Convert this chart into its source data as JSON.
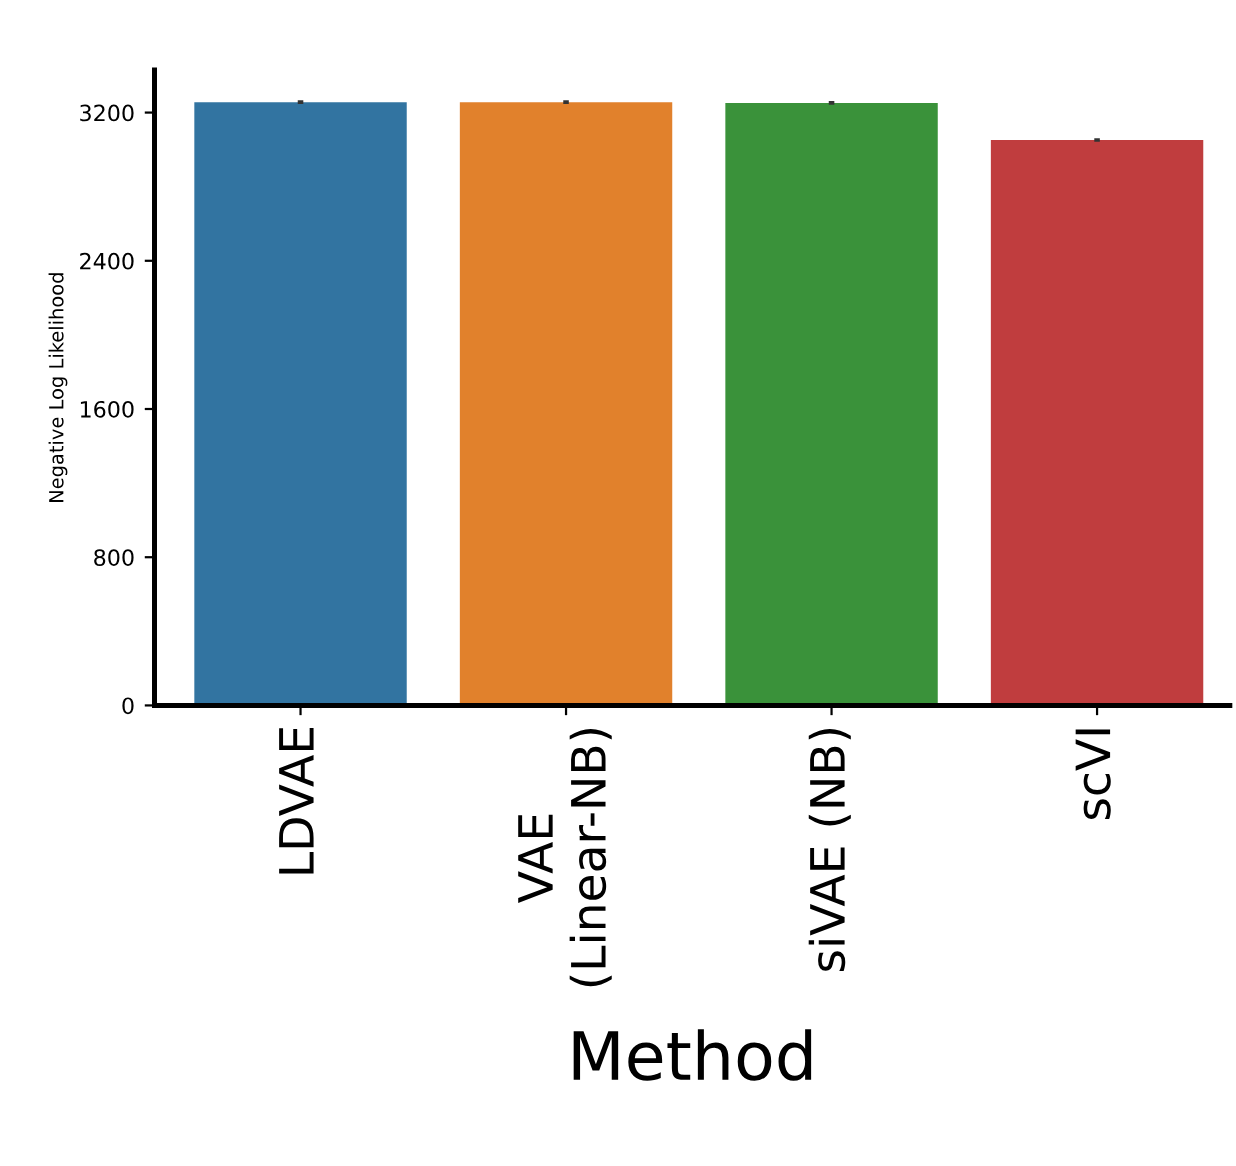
{
  "chart_data": {
    "type": "bar",
    "xlabel": "Method",
    "ylabel": "Negative Log Likelihood",
    "categories": [
      "LDVAE",
      "VAE\n(Linear-NB)",
      "siVAE (NB)",
      "scVI"
    ],
    "values": [
      3256,
      3256,
      3252,
      3052
    ],
    "errors": [
      10,
      10,
      10,
      10
    ],
    "colors": [
      "#3274a1",
      "#e1812c",
      "#3a923a",
      "#c03d3e"
    ],
    "ylim": [
      0,
      3430
    ],
    "yticks": [
      0,
      800,
      1600,
      2400,
      3200
    ],
    "grid": false
  }
}
